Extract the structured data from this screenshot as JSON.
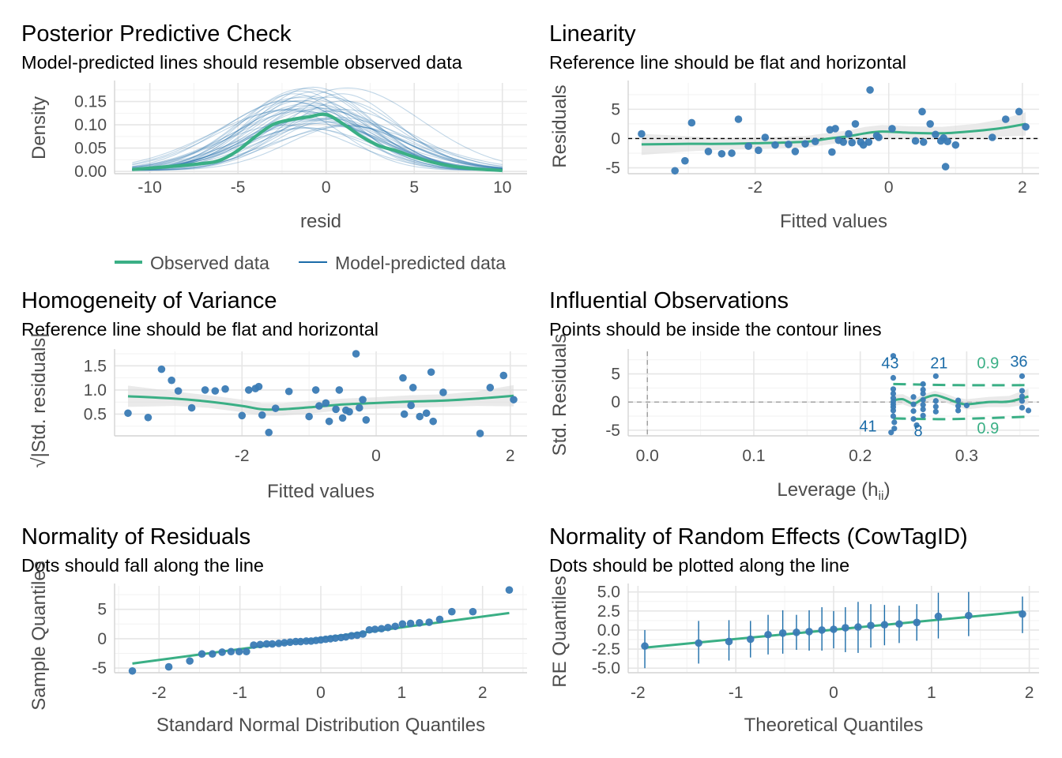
{
  "colors": {
    "observed": "#3aaf85",
    "predicted": "#1b6ca8",
    "point": "#3a7bb5",
    "ribbon": "#d9d9d9",
    "grid": "#e6e6e6",
    "tick": "#4d4d4d"
  },
  "chart_data": [
    {
      "id": "ppc",
      "type": "line",
      "title": "Posterior Predictive Check",
      "subtitle": "Model-predicted lines should resemble observed data",
      "xlabel": "resid",
      "ylabel": "Density",
      "xlim": [
        -12,
        11.4
      ],
      "ylim": [
        -0.005,
        0.19
      ],
      "xticks": [
        -10,
        -5,
        0,
        5,
        10
      ],
      "xtick_labels": [
        "-10",
        "-5",
        "0",
        "5",
        "10"
      ],
      "yticks": [
        0.0,
        0.05,
        0.1,
        0.15
      ],
      "ytick_labels": [
        "0.00",
        "0.05",
        "0.10",
        "0.15"
      ],
      "legend": [
        "Observed data",
        "Model-predicted data"
      ],
      "legend_position": "bottom",
      "series": [
        {
          "name": "Observed data",
          "x": [
            -11,
            -9,
            -7,
            -6,
            -5,
            -4,
            -3,
            -2,
            -1,
            0,
            1,
            2,
            3,
            4,
            5,
            6,
            7,
            8,
            9,
            10
          ],
          "y": [
            0.004,
            0.01,
            0.017,
            0.024,
            0.045,
            0.075,
            0.101,
            0.111,
            0.117,
            0.122,
            0.101,
            0.075,
            0.055,
            0.044,
            0.031,
            0.02,
            0.012,
            0.007,
            0.004,
            0.002
          ]
        }
      ],
      "predicted_draws": {
        "count": 40,
        "peak_range": [
          0.09,
          0.18
        ],
        "peak_x_range": [
          -2.5,
          1.5
        ],
        "sd_range": [
          3.0,
          4.4
        ]
      }
    },
    {
      "id": "linearity",
      "type": "scatter",
      "title": "Linearity",
      "subtitle": "Reference line should be flat and horizontal",
      "xlabel": "Fitted values",
      "ylabel": "Residuals",
      "xlim": [
        -3.9,
        2.25
      ],
      "ylim": [
        -6,
        9.5
      ],
      "xticks": [
        -2,
        0,
        2
      ],
      "xtick_labels": [
        "-2",
        "0",
        "2"
      ],
      "yticks": [
        -5,
        0,
        5
      ],
      "ytick_labels": [
        "-5",
        "0",
        "5"
      ],
      "reference_line": 0,
      "points": [
        [
          -3.7,
          0.8
        ],
        [
          -3.2,
          -5.5
        ],
        [
          -3.05,
          -3.8
        ],
        [
          -2.95,
          2.7
        ],
        [
          -2.7,
          -2.2
        ],
        [
          -2.5,
          -2.6
        ],
        [
          -2.35,
          -2.5
        ],
        [
          -2.25,
          3.3
        ],
        [
          -2.1,
          -1.3
        ],
        [
          -1.95,
          -2.0
        ],
        [
          -1.85,
          0.2
        ],
        [
          -1.7,
          -1.1
        ],
        [
          -1.5,
          -1.0
        ],
        [
          -1.4,
          -2.2
        ],
        [
          -1.25,
          -0.9
        ],
        [
          -1.1,
          -0.5
        ],
        [
          -0.88,
          1.5
        ],
        [
          -0.85,
          -2.3
        ],
        [
          -0.8,
          1.7
        ],
        [
          -0.75,
          -0.3
        ],
        [
          -0.68,
          -0.6
        ],
        [
          -0.6,
          0.8
        ],
        [
          -0.55,
          -0.7
        ],
        [
          -0.5,
          2.5
        ],
        [
          -0.42,
          -0.6
        ],
        [
          -0.38,
          -1.1
        ],
        [
          -0.3,
          -0.6
        ],
        [
          -0.28,
          8.3
        ],
        [
          -0.18,
          0.5
        ],
        [
          -0.15,
          0.2
        ],
        [
          0.05,
          1.7
        ],
        [
          0.4,
          -0.4
        ],
        [
          0.5,
          4.6
        ],
        [
          0.52,
          -0.6
        ],
        [
          0.62,
          2.5
        ],
        [
          0.7,
          0.7
        ],
        [
          0.78,
          -0.4
        ],
        [
          0.82,
          0.1
        ],
        [
          0.85,
          -4.8
        ],
        [
          0.88,
          -0.5
        ],
        [
          1.0,
          -1.1
        ],
        [
          1.55,
          0.2
        ],
        [
          1.75,
          3.3
        ],
        [
          1.95,
          4.6
        ],
        [
          2.05,
          2.0
        ]
      ],
      "smooth": {
        "x": [
          -3.7,
          -3.0,
          -2.5,
          -2.0,
          -1.6,
          -1.2,
          -0.9,
          -0.6,
          -0.35,
          -0.1,
          0.3,
          0.8,
          1.3,
          1.7,
          2.05
        ],
        "y": [
          -1.0,
          -0.9,
          -0.9,
          -0.8,
          -0.7,
          -0.5,
          0.0,
          0.4,
          0.9,
          1.2,
          1.0,
          0.9,
          1.3,
          1.8,
          2.5
        ],
        "band": [
          1.8,
          1.3,
          1.0,
          1.0,
          1.0,
          1.0,
          1.0,
          1.0,
          1.1,
          1.1,
          1.1,
          1.1,
          1.2,
          1.5,
          2.0
        ]
      }
    },
    {
      "id": "homogeneity",
      "type": "scatter",
      "title": "Homogeneity of Variance",
      "subtitle": "Reference line should be flat and horizontal",
      "xlabel": "Fitted values",
      "ylabel": "√|Std. residuals|",
      "xlim": [
        -3.9,
        2.25
      ],
      "ylim": [
        0.05,
        1.8
      ],
      "xticks": [
        -2,
        0,
        2
      ],
      "xtick_labels": [
        "-2",
        "0",
        "2"
      ],
      "yticks": [
        0.5,
        1.0,
        1.5
      ],
      "ytick_labels": [
        "0.5",
        "1.0",
        "1.5"
      ],
      "points": [
        [
          -3.7,
          0.52
        ],
        [
          -3.4,
          0.43
        ],
        [
          -3.2,
          1.43
        ],
        [
          -3.05,
          1.2
        ],
        [
          -2.95,
          0.98
        ],
        [
          -2.75,
          0.63
        ],
        [
          -2.55,
          1.0
        ],
        [
          -2.4,
          0.98
        ],
        [
          -2.25,
          1.02
        ],
        [
          -2.0,
          0.47
        ],
        [
          -1.9,
          1.0
        ],
        [
          -1.8,
          1.03
        ],
        [
          -1.75,
          1.07
        ],
        [
          -1.7,
          0.48
        ],
        [
          -1.6,
          0.12
        ],
        [
          -1.5,
          0.62
        ],
        [
          -1.3,
          0.97
        ],
        [
          -1.0,
          0.45
        ],
        [
          -0.9,
          1.0
        ],
        [
          -0.85,
          0.67
        ],
        [
          -0.75,
          0.73
        ],
        [
          -0.7,
          0.35
        ],
        [
          -0.6,
          0.6
        ],
        [
          -0.55,
          1.0
        ],
        [
          -0.5,
          0.42
        ],
        [
          -0.45,
          0.58
        ],
        [
          -0.4,
          0.55
        ],
        [
          -0.3,
          1.75
        ],
        [
          -0.25,
          0.63
        ],
        [
          -0.2,
          0.8
        ],
        [
          -0.15,
          0.38
        ],
        [
          0.4,
          1.25
        ],
        [
          0.42,
          0.5
        ],
        [
          0.52,
          0.68
        ],
        [
          0.55,
          1.05
        ],
        [
          0.65,
          0.45
        ],
        [
          0.75,
          0.52
        ],
        [
          0.82,
          1.37
        ],
        [
          0.85,
          0.35
        ],
        [
          1.0,
          0.95
        ],
        [
          1.55,
          0.1
        ],
        [
          1.7,
          1.05
        ],
        [
          1.9,
          1.3
        ],
        [
          2.05,
          0.8
        ]
      ],
      "smooth": {
        "x": [
          -3.7,
          -3.0,
          -2.5,
          -2.0,
          -1.7,
          -1.4,
          -1.0,
          -0.5,
          0.0,
          0.5,
          1.0,
          1.5,
          2.05
        ],
        "y": [
          0.87,
          0.82,
          0.76,
          0.67,
          0.6,
          0.6,
          0.64,
          0.7,
          0.73,
          0.76,
          0.78,
          0.82,
          0.88
        ],
        "band": [
          0.22,
          0.15,
          0.13,
          0.13,
          0.13,
          0.13,
          0.13,
          0.12,
          0.12,
          0.13,
          0.13,
          0.15,
          0.22
        ]
      }
    },
    {
      "id": "influential",
      "type": "scatter",
      "title": "Influential Observations",
      "subtitle": "Points should be inside the contour lines",
      "xlabel": "Leverage (h",
      "xlabel_sub": "ii",
      "xlabel_close": ")",
      "ylabel": "Std. Residuals",
      "xlim": [
        -0.018,
        0.368
      ],
      "ylim": [
        -6,
        9
      ],
      "xticks": [
        0.0,
        0.1,
        0.2,
        0.3
      ],
      "xtick_labels": [
        "0.0",
        "0.1",
        "0.2",
        "0.3"
      ],
      "yticks": [
        -5,
        0,
        5
      ],
      "ytick_labels": [
        "-5",
        "0",
        "5"
      ],
      "contour_level": "0.9",
      "points": [
        [
          0.231,
          8.2
        ],
        [
          0.231,
          4.3
        ],
        [
          0.231,
          2.3
        ],
        [
          0.231,
          1.5
        ],
        [
          0.231,
          0.7
        ],
        [
          0.231,
          0.1
        ],
        [
          0.231,
          -0.4
        ],
        [
          0.231,
          -0.9
        ],
        [
          0.231,
          -1.5
        ],
        [
          0.231,
          -2.5
        ],
        [
          0.232,
          -3.6
        ],
        [
          0.232,
          -4.7
        ],
        [
          0.229,
          -5.4
        ],
        [
          0.25,
          0.9
        ],
        [
          0.25,
          -0.4
        ],
        [
          0.25,
          -1.6
        ],
        [
          0.25,
          -3.0
        ],
        [
          0.253,
          -4.1
        ],
        [
          0.259,
          3.2
        ],
        [
          0.259,
          1.5
        ],
        [
          0.259,
          0.4
        ],
        [
          0.259,
          -0.5
        ],
        [
          0.259,
          -1.3
        ],
        [
          0.259,
          -2.4
        ],
        [
          0.259,
          2.2
        ],
        [
          0.271,
          4.6
        ],
        [
          0.271,
          0.2
        ],
        [
          0.271,
          -0.8
        ],
        [
          0.271,
          -1.7
        ],
        [
          0.292,
          0.3
        ],
        [
          0.292,
          -0.7
        ],
        [
          0.292,
          -1.5
        ],
        [
          0.3,
          -0.6
        ],
        [
          0.352,
          4.6
        ],
        [
          0.352,
          2.0
        ],
        [
          0.352,
          1.0
        ],
        [
          0.352,
          0.2
        ],
        [
          0.352,
          -1.0
        ],
        [
          0.358,
          -1.5
        ]
      ],
      "smooth": {
        "x": [
          0.231,
          0.24,
          0.25,
          0.259,
          0.27,
          0.28,
          0.29,
          0.3,
          0.32,
          0.34,
          0.358
        ],
        "y": [
          0.3,
          0.5,
          -0.3,
          0.6,
          1.2,
          0.7,
          0.0,
          -0.4,
          0.0,
          0.1,
          1.0
        ],
        "band": [
          1.0,
          0.9,
          0.8,
          0.7,
          0.8,
          0.8,
          0.8,
          0.9,
          0.9,
          1.0,
          1.4
        ]
      },
      "contour_upper": {
        "x": [
          0.231,
          0.259,
          0.292,
          0.358
        ],
        "y": [
          3.2,
          3.1,
          3.0,
          3.0
        ]
      },
      "contour_lower": {
        "x": [
          0.231,
          0.259,
          0.292,
          0.358
        ],
        "y": [
          -2.9,
          -3.0,
          -3.0,
          -2.6
        ]
      },
      "labels": [
        {
          "text": "43",
          "x": 0.231,
          "y": 4.3,
          "color": "#1b6ca8"
        },
        {
          "text": "21",
          "x": 0.271,
          "y": 4.6,
          "color": "#1b6ca8"
        },
        {
          "text": "36",
          "x": 0.352,
          "y": 4.6,
          "color": "#1b6ca8"
        },
        {
          "text": "41",
          "x": 0.231,
          "y": -4.7,
          "color": "#1b6ca8"
        },
        {
          "text": "8",
          "x": 0.25,
          "y": -4.1,
          "color": "#1b6ca8"
        },
        {
          "text": "0.9",
          "x": 0.32,
          "y": 6.0,
          "color": "#3aaf85"
        },
        {
          "text": "0.9",
          "x": 0.32,
          "y": -5.6,
          "color": "#3aaf85"
        }
      ]
    },
    {
      "id": "qq",
      "type": "scatter",
      "title": "Normality of Residuals",
      "subtitle": "Dots should fall along the line",
      "xlabel": "Standard Normal Distribution Quantiles",
      "ylabel": "Sample Quantiles",
      "xlim": [
        -2.55,
        2.55
      ],
      "ylim": [
        -5.8,
        9.0
      ],
      "xticks": [
        -2,
        -1,
        0,
        1,
        2
      ],
      "xtick_labels": [
        "-2",
        "-1",
        "0",
        "1",
        "2"
      ],
      "yticks": [
        -5,
        0,
        5
      ],
      "ytick_labels": [
        "-5",
        "0",
        "5"
      ],
      "line": {
        "slope": 1.85,
        "intercept": 0.07
      },
      "points": [
        [
          -2.33,
          -5.5
        ],
        [
          -1.88,
          -4.8
        ],
        [
          -1.62,
          -3.8
        ],
        [
          -1.47,
          -2.6
        ],
        [
          -1.34,
          -2.6
        ],
        [
          -1.22,
          -2.3
        ],
        [
          -1.11,
          -2.2
        ],
        [
          -1.01,
          -2.2
        ],
        [
          -0.92,
          -2.2
        ],
        [
          -0.83,
          -1.1
        ],
        [
          -0.75,
          -1.0
        ],
        [
          -0.67,
          -0.9
        ],
        [
          -0.6,
          -0.9
        ],
        [
          -0.52,
          -0.8
        ],
        [
          -0.45,
          -0.7
        ],
        [
          -0.38,
          -0.6
        ],
        [
          -0.31,
          -0.5
        ],
        [
          -0.25,
          -0.5
        ],
        [
          -0.18,
          -0.4
        ],
        [
          -0.12,
          -0.4
        ],
        [
          -0.06,
          -0.3
        ],
        [
          0.0,
          -0.2
        ],
        [
          0.06,
          -0.1
        ],
        [
          0.12,
          0.0
        ],
        [
          0.18,
          0.1
        ],
        [
          0.25,
          0.2
        ],
        [
          0.31,
          0.3
        ],
        [
          0.38,
          0.5
        ],
        [
          0.45,
          0.6
        ],
        [
          0.52,
          0.8
        ],
        [
          0.6,
          1.5
        ],
        [
          0.67,
          1.6
        ],
        [
          0.75,
          1.7
        ],
        [
          0.83,
          1.9
        ],
        [
          0.92,
          2.1
        ],
        [
          1.01,
          2.5
        ],
        [
          1.11,
          2.6
        ],
        [
          1.22,
          2.7
        ],
        [
          1.34,
          2.8
        ],
        [
          1.47,
          3.3
        ],
        [
          1.62,
          4.6
        ],
        [
          1.88,
          4.6
        ],
        [
          2.33,
          8.3
        ]
      ]
    },
    {
      "id": "re",
      "type": "scatter",
      "title": "Normality of Random Effects (CowTagID)",
      "subtitle": "Dots should be plotted along the line",
      "xlabel": "Theoretical Quantiles",
      "ylabel": "RE Quantiles",
      "xlim": [
        -2.1,
        2.1
      ],
      "ylim": [
        -5.6,
        5.8
      ],
      "xticks": [
        -2,
        -1,
        0,
        1,
        2
      ],
      "xtick_labels": [
        "-2",
        "-1",
        "0",
        "1",
        "2"
      ],
      "yticks": [
        -5.0,
        -2.5,
        0.0,
        2.5,
        5.0
      ],
      "ytick_labels": [
        "-5.0",
        "-2.5",
        "0.0",
        "2.5",
        "5.0"
      ],
      "line": {
        "slope": 1.22,
        "intercept": 0.05
      },
      "points": [
        {
          "x": -1.93,
          "y": -2.1,
          "lo": -5.0,
          "hi": 0.0
        },
        {
          "x": -1.38,
          "y": -1.7,
          "lo": -4.4,
          "hi": 1.2
        },
        {
          "x": -1.07,
          "y": -1.5,
          "lo": -4.0,
          "hi": 1.3
        },
        {
          "x": -0.85,
          "y": -1.2,
          "lo": -3.6,
          "hi": 1.2
        },
        {
          "x": -0.67,
          "y": -0.6,
          "lo": -3.2,
          "hi": 2.0
        },
        {
          "x": -0.52,
          "y": -0.4,
          "lo": -3.1,
          "hi": 2.6
        },
        {
          "x": -0.38,
          "y": -0.3,
          "lo": -2.6,
          "hi": 2.0
        },
        {
          "x": -0.25,
          "y": -0.2,
          "lo": -2.7,
          "hi": 2.6
        },
        {
          "x": -0.12,
          "y": 0.0,
          "lo": -2.7,
          "hi": 3.0
        },
        {
          "x": 0.0,
          "y": 0.1,
          "lo": -2.4,
          "hi": 2.5
        },
        {
          "x": 0.12,
          "y": 0.3,
          "lo": -2.9,
          "hi": 3.0
        },
        {
          "x": 0.25,
          "y": 0.4,
          "lo": -3.0,
          "hi": 3.7
        },
        {
          "x": 0.38,
          "y": 0.6,
          "lo": -2.3,
          "hi": 3.4
        },
        {
          "x": 0.52,
          "y": 0.7,
          "lo": -2.0,
          "hi": 3.3
        },
        {
          "x": 0.67,
          "y": 0.8,
          "lo": -1.7,
          "hi": 3.2
        },
        {
          "x": 0.85,
          "y": 1.0,
          "lo": -1.4,
          "hi": 3.4
        },
        {
          "x": 1.07,
          "y": 1.8,
          "lo": -1.1,
          "hi": 4.9
        },
        {
          "x": 1.38,
          "y": 1.9,
          "lo": -0.8,
          "hi": 5.0
        },
        {
          "x": 1.93,
          "y": 2.1,
          "lo": -0.4,
          "hi": 4.4
        }
      ]
    }
  ]
}
